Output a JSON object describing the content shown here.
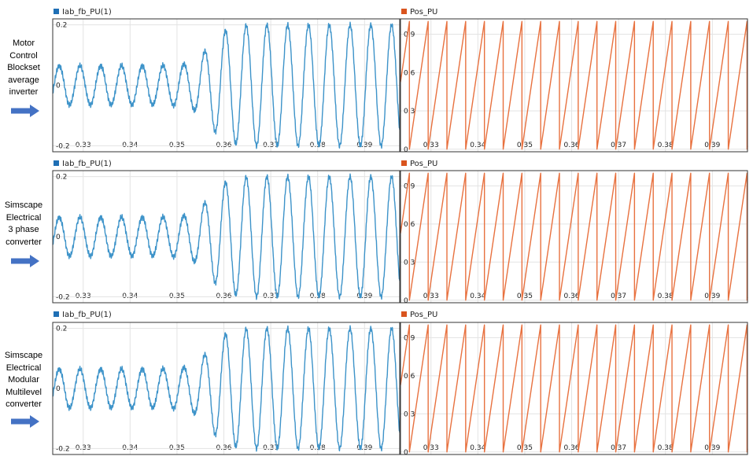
{
  "rows": [
    {
      "label_lines": [
        "Motor",
        "Control",
        "Blockset",
        "average",
        "inverter"
      ]
    },
    {
      "label_lines": [
        "Simscape",
        "Electrical",
        "3 phase",
        "converter"
      ]
    },
    {
      "label_lines": [
        "Simscape",
        "Electrical",
        "Modular",
        "Multilevel",
        "converter"
      ]
    }
  ],
  "colors": {
    "current": "#3d93c9",
    "position": "#e8713f",
    "current_swatch": "#1f6fb5",
    "position_swatch": "#d9541e",
    "arrow": "#4472c4"
  },
  "chart_data": [
    {
      "type": "line",
      "series": [
        {
          "name": "Iab_fb_PU(1)",
          "signal": "sinusoid",
          "amplitude_before": 0.065,
          "amplitude_after": 0.2,
          "step_time": 0.357,
          "period": 0.00443
        }
      ],
      "xlim": [
        0.3235,
        0.3975
      ],
      "ylim": [
        -0.22,
        0.22
      ],
      "x_ticks": [
        "0.33",
        "0.34",
        "0.35",
        "0.36",
        "0.37",
        "0.38",
        "0.39"
      ],
      "y_ticks": [
        "0.2",
        "0",
        "-0.2"
      ],
      "grid": true
    },
    {
      "type": "line",
      "series": [
        {
          "name": "Pos_PU",
          "signal": "sawtooth",
          "min": 0,
          "max": 1,
          "period": 0.004
        }
      ],
      "xlim": [
        0.3235,
        0.3975
      ],
      "ylim": [
        -0.02,
        1.02
      ],
      "x_ticks": [
        "0.33",
        "0.34",
        "0.35",
        "0.36",
        "0.37",
        "0.38",
        "0.39"
      ],
      "y_ticks": [
        "0.9",
        "0.6",
        "0.3",
        "0"
      ],
      "grid": true
    },
    {
      "type": "line",
      "series": [
        {
          "name": "Iab_fb_PU(1)",
          "signal": "sinusoid",
          "amplitude_before": 0.065,
          "amplitude_after": 0.2,
          "step_time": 0.357,
          "period": 0.00443
        }
      ],
      "xlim": [
        0.3235,
        0.3975
      ],
      "ylim": [
        -0.22,
        0.22
      ],
      "x_ticks": [
        "0.33",
        "0.34",
        "0.35",
        "0.36",
        "0.37",
        "0.38",
        "0.39"
      ],
      "y_ticks": [
        "0.2",
        "0",
        "-0.2"
      ],
      "grid": true
    },
    {
      "type": "line",
      "series": [
        {
          "name": "Pos_PU",
          "signal": "sawtooth",
          "min": 0,
          "max": 1,
          "period": 0.004
        }
      ],
      "xlim": [
        0.3235,
        0.3975
      ],
      "ylim": [
        -0.02,
        1.02
      ],
      "x_ticks": [
        "0.33",
        "0.34",
        "0.35",
        "0.36",
        "0.37",
        "0.38",
        "0.39"
      ],
      "y_ticks": [
        "0.9",
        "0.6",
        "0.3",
        "0"
      ],
      "grid": true
    },
    {
      "type": "line",
      "series": [
        {
          "name": "Iab_fb_PU(1)",
          "signal": "sinusoid",
          "amplitude_before": 0.065,
          "amplitude_after": 0.2,
          "step_time": 0.357,
          "period": 0.00443
        }
      ],
      "xlim": [
        0.3235,
        0.3975
      ],
      "ylim": [
        -0.22,
        0.22
      ],
      "x_ticks": [
        "0.33",
        "0.34",
        "0.35",
        "0.36",
        "0.37",
        "0.38",
        "0.39"
      ],
      "y_ticks": [
        "0.2",
        "0",
        "-0.2"
      ],
      "grid": true
    },
    {
      "type": "line",
      "series": [
        {
          "name": "Pos_PU",
          "signal": "sawtooth",
          "min": 0,
          "max": 1,
          "period": 0.004
        }
      ],
      "xlim": [
        0.3235,
        0.3975
      ],
      "ylim": [
        -0.02,
        1.02
      ],
      "x_ticks": [
        "0.33",
        "0.34",
        "0.35",
        "0.36",
        "0.37",
        "0.38",
        "0.39"
      ],
      "y_ticks": [
        "0.9",
        "0.6",
        "0.3",
        "0"
      ],
      "grid": true
    }
  ]
}
